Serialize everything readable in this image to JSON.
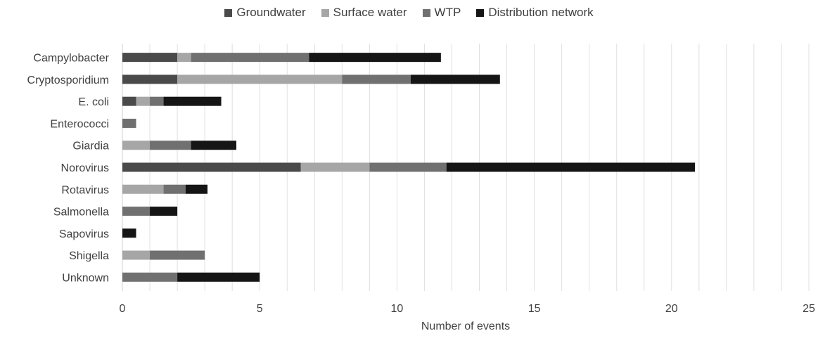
{
  "chart_data": {
    "type": "bar",
    "orientation": "horizontal",
    "stacked": true,
    "title": "",
    "xlabel": "Number of events",
    "ylabel": "",
    "xlim": [
      0,
      25
    ],
    "x_ticks": [
      0,
      5,
      10,
      15,
      20,
      25
    ],
    "grid": "vertical minor gridlines every 1",
    "legend_position": "top",
    "categories": [
      "Campylobacter",
      "Cryptosporidium",
      "E. coli",
      "Enterococci",
      "Giardia",
      "Norovirus",
      "Rotavirus",
      "Salmonella",
      "Sapovirus",
      "Shigella",
      "Unknown"
    ],
    "series": [
      {
        "name": "Groundwater",
        "color": "#4a4a4a",
        "values": [
          2,
          2,
          0.5,
          0,
          0,
          6.5,
          0,
          0,
          0,
          0,
          0
        ]
      },
      {
        "name": "Surface water",
        "color": "#a6a6a6",
        "values": [
          0.5,
          6,
          0.5,
          0,
          1,
          2.5,
          1.5,
          0,
          0,
          1,
          0
        ]
      },
      {
        "name": "WTP",
        "color": "#707070",
        "values": [
          4.3,
          2.5,
          0.5,
          0.5,
          1.5,
          2.8,
          0.8,
          1,
          0,
          2,
          2
        ]
      },
      {
        "name": "Distribution network",
        "color": "#151515",
        "values": [
          4.8,
          3.25,
          2.1,
          0,
          1.65,
          9.05,
          0.8,
          1,
          0.5,
          0,
          3
        ]
      }
    ]
  }
}
